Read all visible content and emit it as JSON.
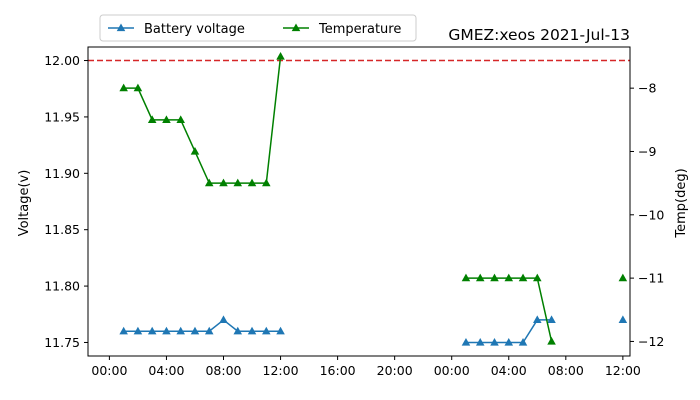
{
  "chart_data": {
    "type": "line",
    "title": "GMEZ:xeos 2021-Jul-13",
    "ylabel": "Voltage(v)",
    "y2label": "Temp(deg)",
    "ylim": [
      11.738,
      12.012
    ],
    "y2lim": [
      -12.23,
      -7.35
    ],
    "yticks": [
      "11.75",
      "11.80",
      "11.85",
      "11.90",
      "11.95",
      "12.00"
    ],
    "y2ticks": [
      "−8",
      "−9",
      "−10",
      "−11",
      "−12"
    ],
    "xlim_hours": [
      -1.5,
      36.5
    ],
    "x_tick_labels": [
      "00:00",
      "04:00",
      "08:00",
      "12:00",
      "16:00",
      "20:00",
      "00:00",
      "04:00",
      "08:00",
      "12:00"
    ],
    "reference_line": {
      "y": 12.0,
      "color": "#d62728",
      "style": "dashed"
    },
    "legend_placement": "top-left",
    "grid": false,
    "series": [
      {
        "name": "Battery voltage",
        "axis": "left",
        "color": "#1f77b4",
        "marker": "triangle",
        "segments": [
          {
            "x": [
              "01:00",
              "02:00",
              "03:00",
              "04:00",
              "05:00",
              "06:00",
              "07:00",
              "08:00",
              "09:00",
              "10:00",
              "11:00",
              "12:00"
            ],
            "values": [
              11.76,
              11.76,
              11.76,
              11.76,
              11.76,
              11.76,
              11.76,
              11.77,
              11.76,
              11.76,
              11.76,
              11.76
            ]
          },
          {
            "x": [
              "01:00",
              "02:00",
              "03:00",
              "04:00",
              "05:00",
              "06:00",
              "07:00"
            ],
            "values": [
              11.75,
              11.75,
              11.75,
              11.75,
              11.75,
              11.77,
              11.77
            ]
          },
          {
            "x": [
              "12:00"
            ],
            "values": [
              11.77
            ]
          }
        ]
      },
      {
        "name": "Temperature",
        "axis": "right",
        "color": "#008000",
        "marker": "triangle",
        "segments": [
          {
            "x": [
              "01:00",
              "02:00",
              "03:00",
              "04:00",
              "05:00",
              "06:00",
              "07:00",
              "08:00",
              "09:00",
              "10:00",
              "11:00",
              "12:00"
            ],
            "values": [
              -8,
              -8,
              -8.5,
              -8.5,
              -8.5,
              -9,
              -9.5,
              -9.5,
              -9.5,
              -9.5,
              -9.5,
              -7.5
            ]
          },
          {
            "x": [
              "01:00",
              "02:00",
              "03:00",
              "04:00",
              "05:00",
              "06:00",
              "07:00"
            ],
            "values": [
              -11,
              -11,
              -11,
              -11,
              -11,
              -11,
              -12
            ]
          },
          {
            "x": [
              "12:00"
            ],
            "values": [
              -11
            ]
          }
        ]
      }
    ]
  }
}
